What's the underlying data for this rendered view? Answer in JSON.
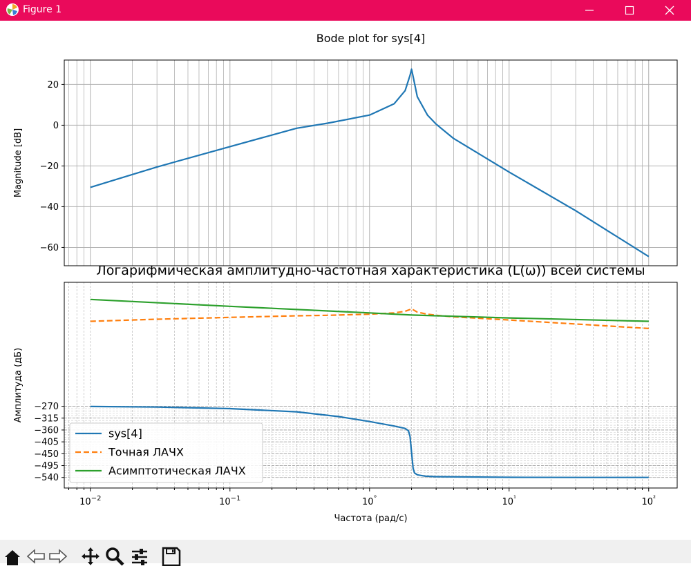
{
  "window": {
    "title": "Figure 1"
  },
  "chart_data": [
    {
      "type": "line",
      "title": "Bode plot for sys[4]",
      "xlabel": "",
      "ylabel": "Magnitude [dB]",
      "xscale": "log",
      "xlim": [
        0.0065,
        160
      ],
      "ylim": [
        -69,
        32
      ],
      "yticks": [
        20,
        0,
        -20,
        -40,
        -60
      ],
      "ytick_labels": [
        "20",
        "0",
        "−20",
        "−40",
        "−60"
      ],
      "grid": "major and minor (x), major (y)",
      "series": [
        {
          "color": "#1f77b4",
          "style": "solid",
          "x": [
            0.01,
            0.03,
            0.1,
            0.3,
            0.5,
            1.0,
            1.5,
            1.8,
            1.95,
            2.0,
            2.05,
            2.2,
            2.6,
            3.0,
            4.0,
            10,
            30,
            100
          ],
          "y": [
            -30.5,
            -20.5,
            -10.5,
            -1.5,
            1.0,
            5.0,
            10.5,
            17.0,
            24.5,
            27.5,
            24.0,
            14.0,
            5.0,
            0.5,
            -6.5,
            -23.0,
            -42.0,
            -64.5
          ]
        }
      ]
    },
    {
      "type": "line",
      "title": "Логарифмическая амплитудно-частотная характеристика (L(ω)) всей системы",
      "xlabel": "Частота (рад/с)",
      "ylabel": "Амплитуда (дБ)",
      "xscale": "log",
      "xlim": [
        0.0065,
        160
      ],
      "ylim": [
        -580,
        200
      ],
      "xticks": [
        0.01,
        0.1,
        1,
        10,
        100
      ],
      "xtick_labels": [
        "10−2",
        "10−1",
        "10°",
        "10¹",
        "10²"
      ],
      "yticks": [
        -270,
        -315,
        -360,
        -405,
        -450,
        -495,
        -540
      ],
      "ytick_labels": [
        "−270",
        "−315",
        "−360",
        "−405",
        "−450",
        "−495",
        "−540"
      ],
      "grid": "major and minor, dashed",
      "legend_position": "lower-left",
      "series": [
        {
          "name": "sys[4]",
          "color": "#1f77b4",
          "style": "solid",
          "x": [
            0.01,
            0.03,
            0.1,
            0.3,
            0.6,
            1.0,
            1.5,
            1.8,
            1.9,
            1.95,
            2.0,
            2.05,
            2.1,
            2.2,
            2.5,
            3.0,
            5.0,
            10,
            30,
            100
          ],
          "y": [
            -271,
            -273,
            -279,
            -291,
            -309,
            -328,
            -345,
            -354,
            -363,
            -385,
            -445,
            -505,
            -523,
            -530,
            -535,
            -537,
            -538,
            -539.5,
            -540,
            -540
          ]
        },
        {
          "name": "Точная ЛАЧХ",
          "color": "#ff7f0e",
          "style": "dashed",
          "x": [
            0.01,
            0.03,
            0.1,
            0.3,
            0.5,
            1.0,
            1.5,
            1.8,
            1.95,
            2.0,
            2.05,
            2.2,
            2.6,
            3.0,
            4.0,
            10,
            30,
            100
          ],
          "y": [
            52,
            60,
            67,
            73,
            75,
            79,
            84,
            90,
            97,
            100,
            96,
            87,
            79,
            75,
            69,
            57,
            42,
            25
          ]
        },
        {
          "name": "Асимптотическая ЛАЧХ",
          "color": "#2ca02c",
          "style": "solid",
          "x": [
            0.01,
            0.1,
            1,
            2,
            10,
            100
          ],
          "y": [
            135,
            109,
            84,
            76,
            65,
            52
          ]
        }
      ]
    }
  ]
}
